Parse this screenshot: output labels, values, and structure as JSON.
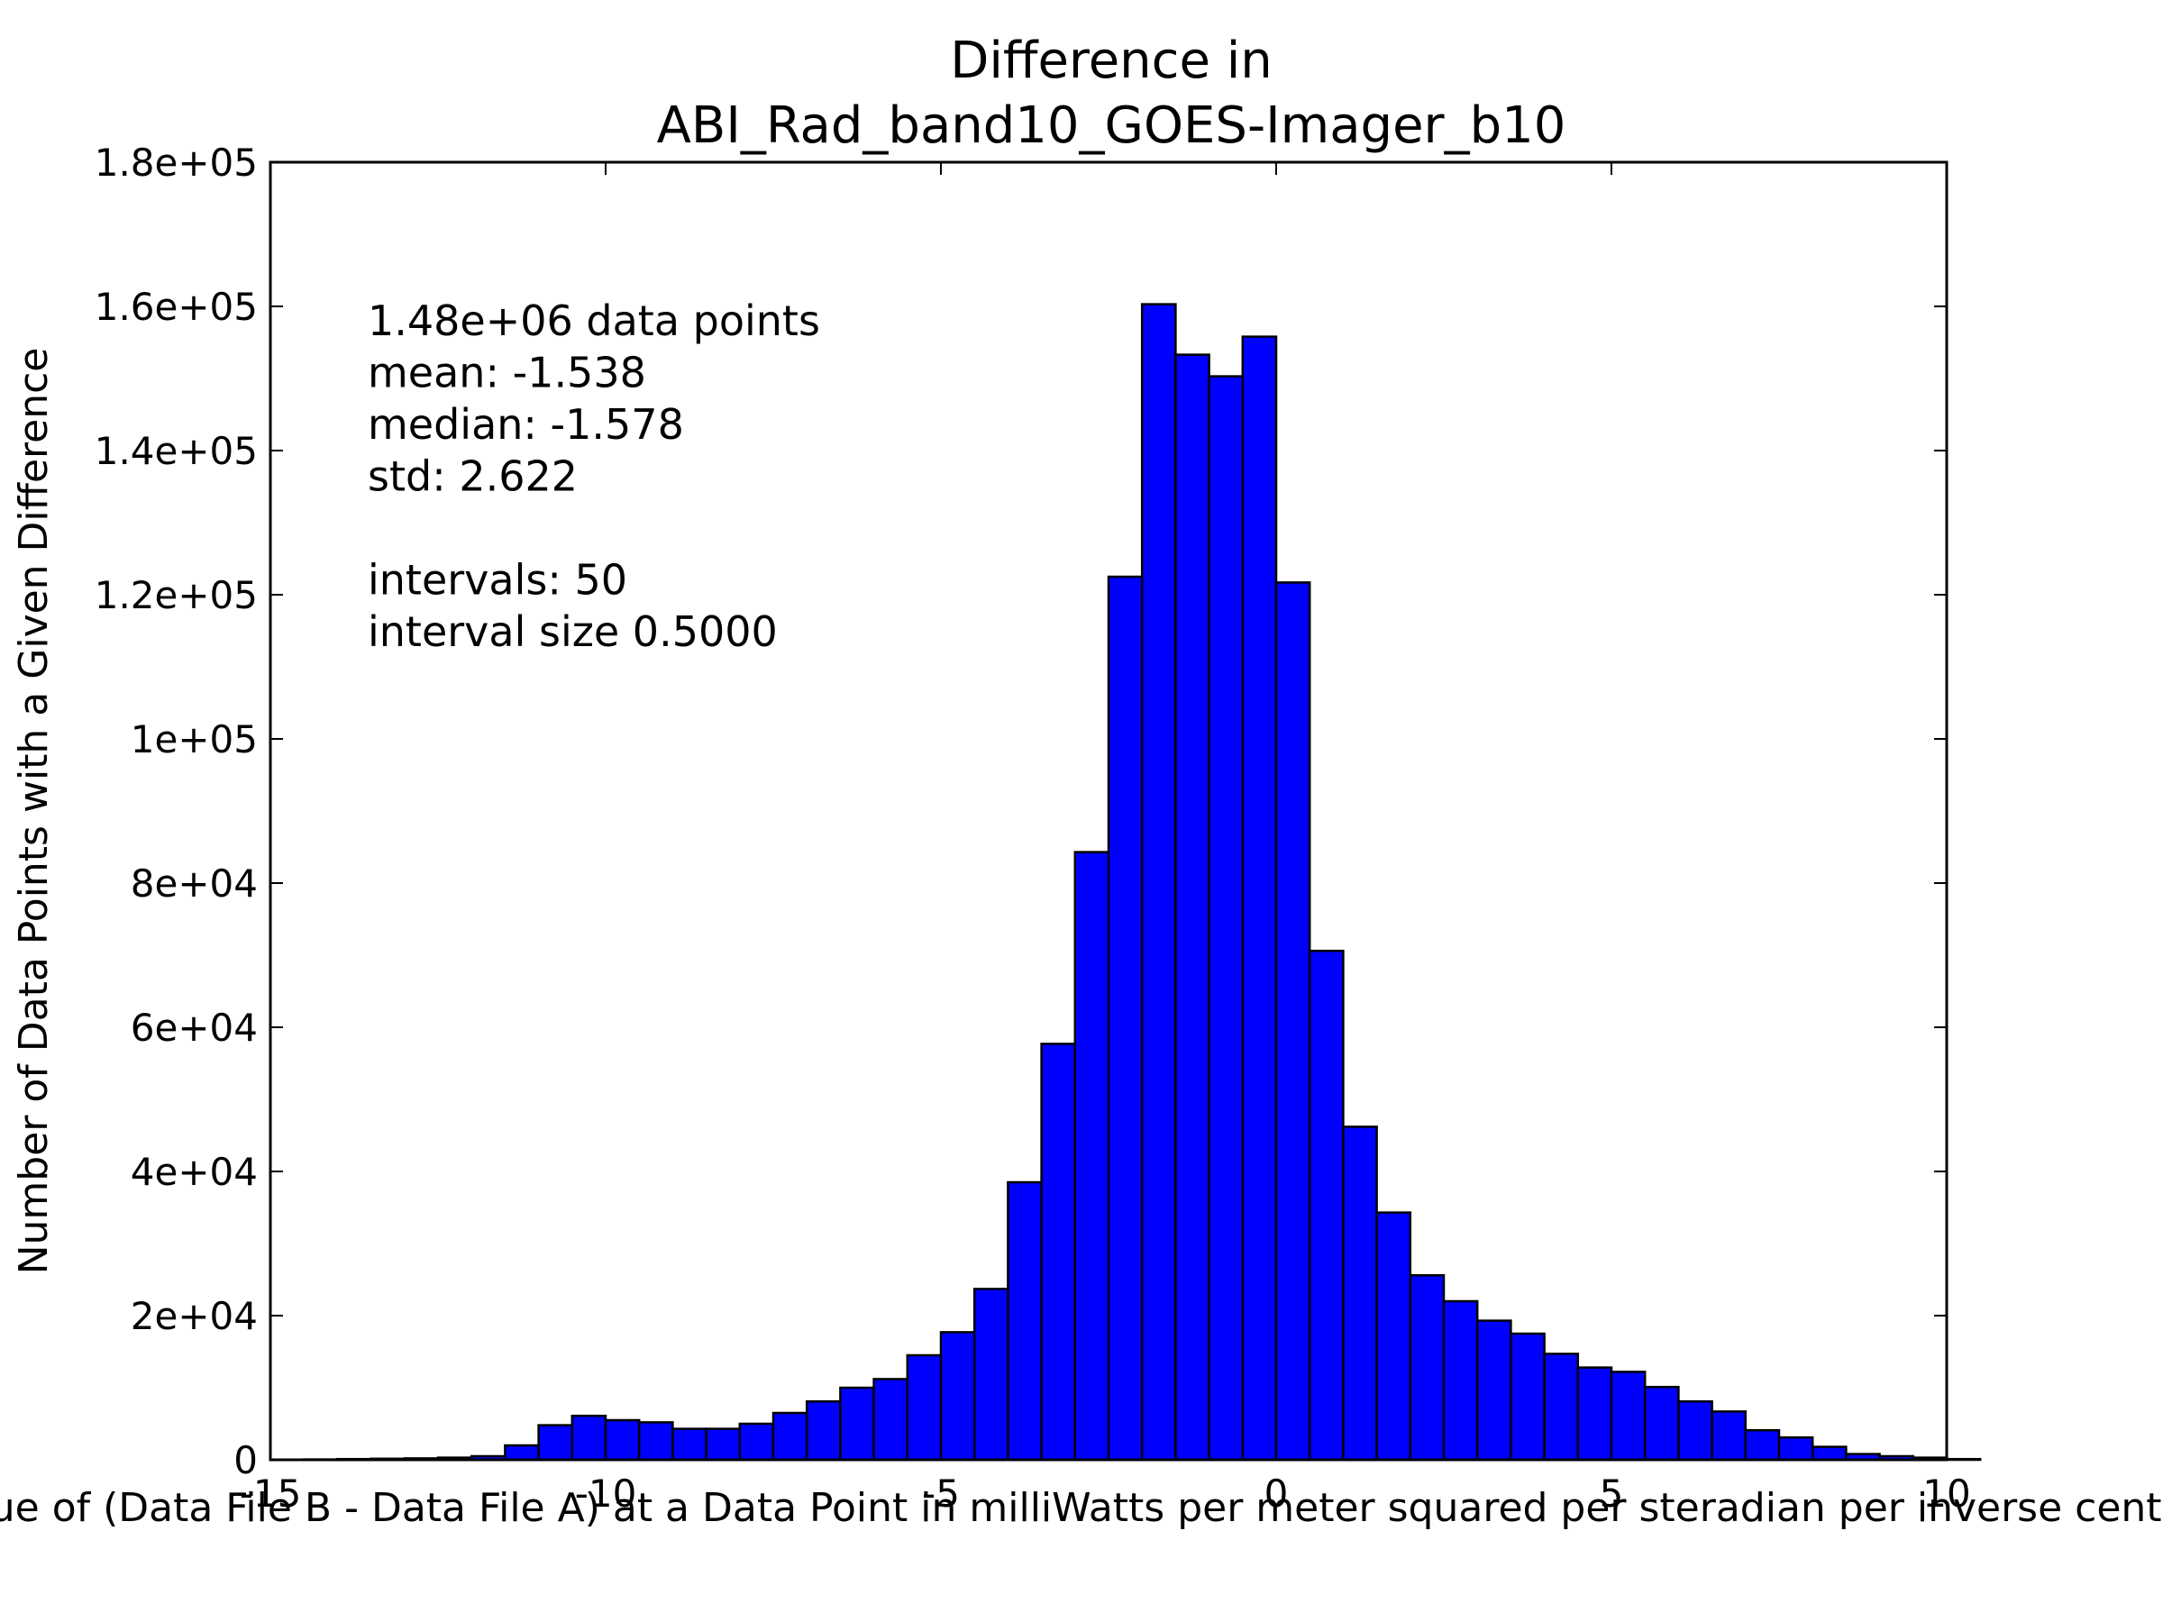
{
  "chart_data": {
    "type": "bar",
    "title_lines": [
      "Difference in",
      "ABI_Rad_band10_GOES-Imager_b10"
    ],
    "xlabel": "Value of (Data File B - Data File A) at a Data Point in milliWatts per meter squared per steradian per inverse centimeter",
    "ylabel": "Number of Data Points with a Given Difference",
    "xlim": [
      -15,
      10
    ],
    "ylim": [
      0,
      180000
    ],
    "x_ticks": [
      {
        "value": -15,
        "label": "-15"
      },
      {
        "value": -10,
        "label": "-10"
      },
      {
        "value": -5,
        "label": "-5"
      },
      {
        "value": 0,
        "label": "0"
      },
      {
        "value": 5,
        "label": "5"
      },
      {
        "value": 10,
        "label": "10"
      }
    ],
    "y_ticks": [
      {
        "value": 0,
        "label": "0"
      },
      {
        "value": 20000,
        "label": "2e+04"
      },
      {
        "value": 40000,
        "label": "4e+04"
      },
      {
        "value": 60000,
        "label": "6e+04"
      },
      {
        "value": 80000,
        "label": "8e+04"
      },
      {
        "value": 100000,
        "label": "1e+05"
      },
      {
        "value": 120000,
        "label": "1.2e+05"
      },
      {
        "value": 140000,
        "label": "1.4e+05"
      },
      {
        "value": 160000,
        "label": "1.6e+05"
      },
      {
        "value": 180000,
        "label": "1.8e+05"
      }
    ],
    "bin_start": -14.5,
    "bin_width": 0.5,
    "bar_color": "#0000ff",
    "values": [
      50,
      100,
      150,
      200,
      300,
      500,
      2000,
      4800,
      6100,
      5500,
      5200,
      4300,
      4300,
      5000,
      6500,
      8100,
      10000,
      11200,
      14500,
      17700,
      23700,
      38500,
      57700,
      84300,
      122500,
      160300,
      153300,
      150300,
      155800,
      121700,
      70600,
      46200,
      34300,
      25600,
      22000,
      19300,
      17500,
      14700,
      12800,
      12200,
      10100,
      8100,
      6700,
      4100,
      3100,
      1800,
      800,
      500,
      300,
      100
    ],
    "stats_lines": [
      "1.48e+06 data points",
      "mean: -1.538",
      "median: -1.578",
      "std: 2.622",
      "",
      "intervals: 50",
      "interval size 0.5000"
    ],
    "grid": false,
    "legend": "none"
  }
}
